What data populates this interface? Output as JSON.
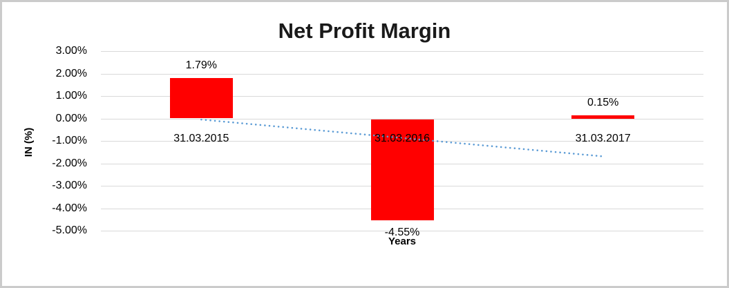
{
  "frame": {
    "background": "#ffffff",
    "border_color": "#cbcbcb"
  },
  "chart_data": {
    "type": "bar",
    "title": "Net Profit Margin",
    "xlabel": "Years",
    "ylabel": "IN (%)",
    "categories": [
      "31.03.2015",
      "31.03.2016",
      "31.03.2017"
    ],
    "values": [
      1.79,
      -4.55,
      0.15
    ],
    "data_labels": [
      "1.79%",
      "-4.55%",
      "0.15%"
    ],
    "ytick_labels": [
      "3.00%",
      "2.00%",
      "1.00%",
      "0.00%",
      "-1.00%",
      "-2.00%",
      "-3.00%",
      "-4.00%",
      "-5.00%"
    ],
    "ytick_values": [
      3,
      2,
      1,
      0,
      -1,
      -2,
      -3,
      -4,
      -5
    ],
    "ylim": [
      -5,
      3
    ],
    "grid": true,
    "legend": "none",
    "bar_color": "#ff0000",
    "gridline_color": "#d9d9d9",
    "text_color": "#000000",
    "trendline": {
      "type": "linear",
      "style": "dotted",
      "color": "#5b9bd5"
    }
  }
}
